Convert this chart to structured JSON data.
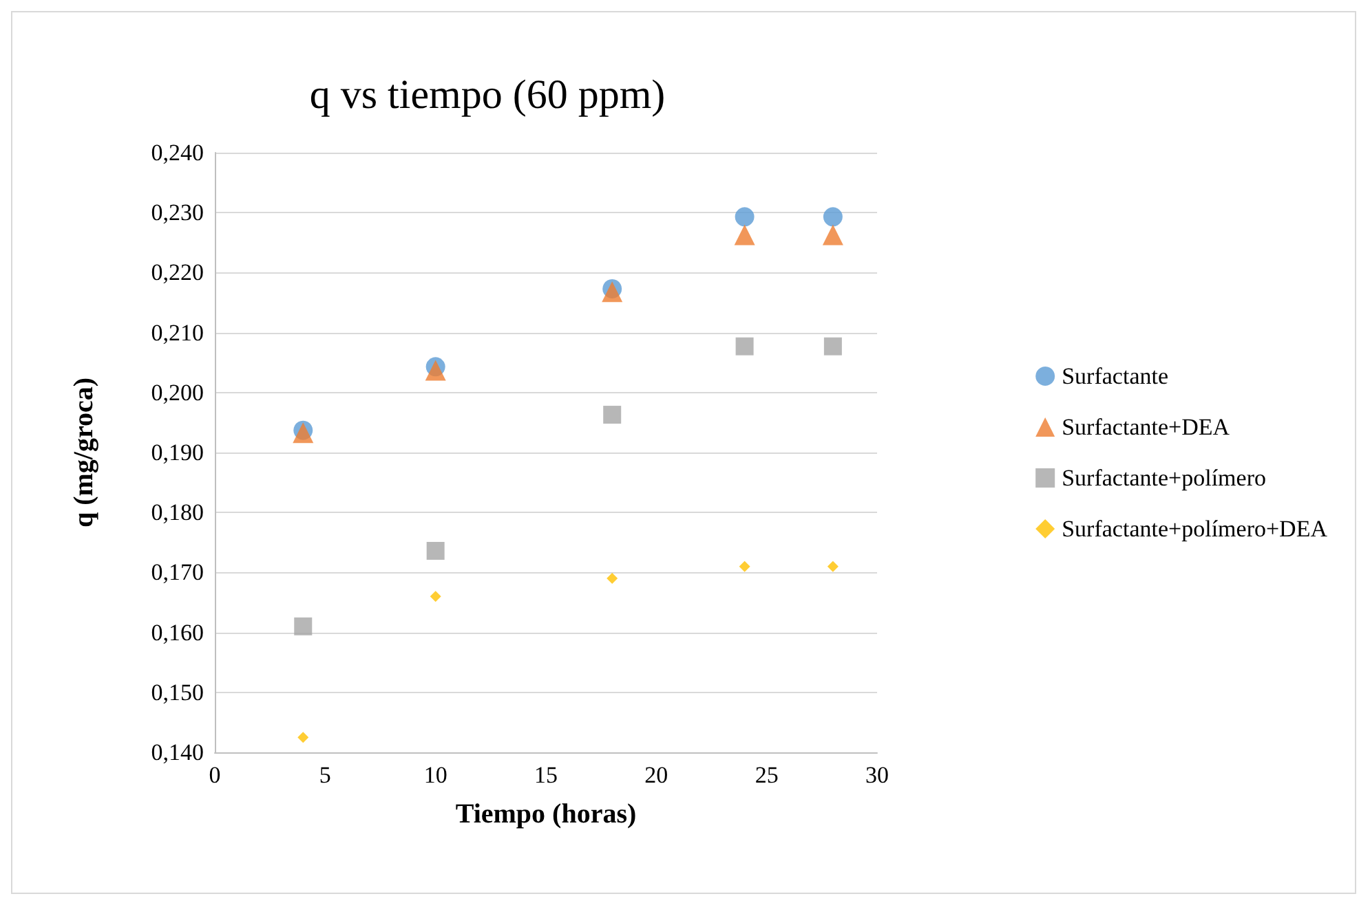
{
  "chart_data": {
    "type": "scatter",
    "title": "q vs tiempo (60 ppm)",
    "xlabel": "Tiempo (horas)",
    "ylabel": "q (mg/groca)",
    "x": [
      4,
      10,
      18,
      24,
      28
    ],
    "series": [
      {
        "name": "Surfactante",
        "color": "#5b9bd5",
        "marker": "circle",
        "values": [
          0.1937,
          0.2043,
          0.2173,
          0.2293,
          0.2293
        ]
      },
      {
        "name": "Surfactante+DEA",
        "color": "#ed7d31",
        "marker": "triangle",
        "values": [
          0.1933,
          0.2037,
          0.2168,
          0.2263,
          0.2263
        ]
      },
      {
        "name": "Surfactante+polímero",
        "color": "#a5a5a5",
        "marker": "square",
        "values": [
          0.161,
          0.1736,
          0.1963,
          0.2077,
          0.2077
        ]
      },
      {
        "name": "Surfactante+polímero+DEA",
        "color": "#ffc000",
        "marker": "diamond",
        "values": [
          0.1425,
          0.166,
          0.169,
          0.171,
          0.171
        ]
      }
    ],
    "xlim": [
      0,
      30
    ],
    "xticks": [
      0,
      5,
      10,
      15,
      20,
      25,
      30
    ],
    "ylim": [
      0.14,
      0.24
    ],
    "yticks": [
      {
        "value": 0.14,
        "label": "0,140"
      },
      {
        "value": 0.15,
        "label": "0,150"
      },
      {
        "value": 0.16,
        "label": "0,160"
      },
      {
        "value": 0.17,
        "label": "0,170"
      },
      {
        "value": 0.18,
        "label": "0,180"
      },
      {
        "value": 0.19,
        "label": "0,190"
      },
      {
        "value": 0.2,
        "label": "0,200"
      },
      {
        "value": 0.21,
        "label": "0,210"
      },
      {
        "value": 0.22,
        "label": "0,220"
      },
      {
        "value": 0.23,
        "label": "0,230"
      },
      {
        "value": 0.24,
        "label": "0,240"
      }
    ],
    "grid": "y",
    "legend": "right"
  }
}
